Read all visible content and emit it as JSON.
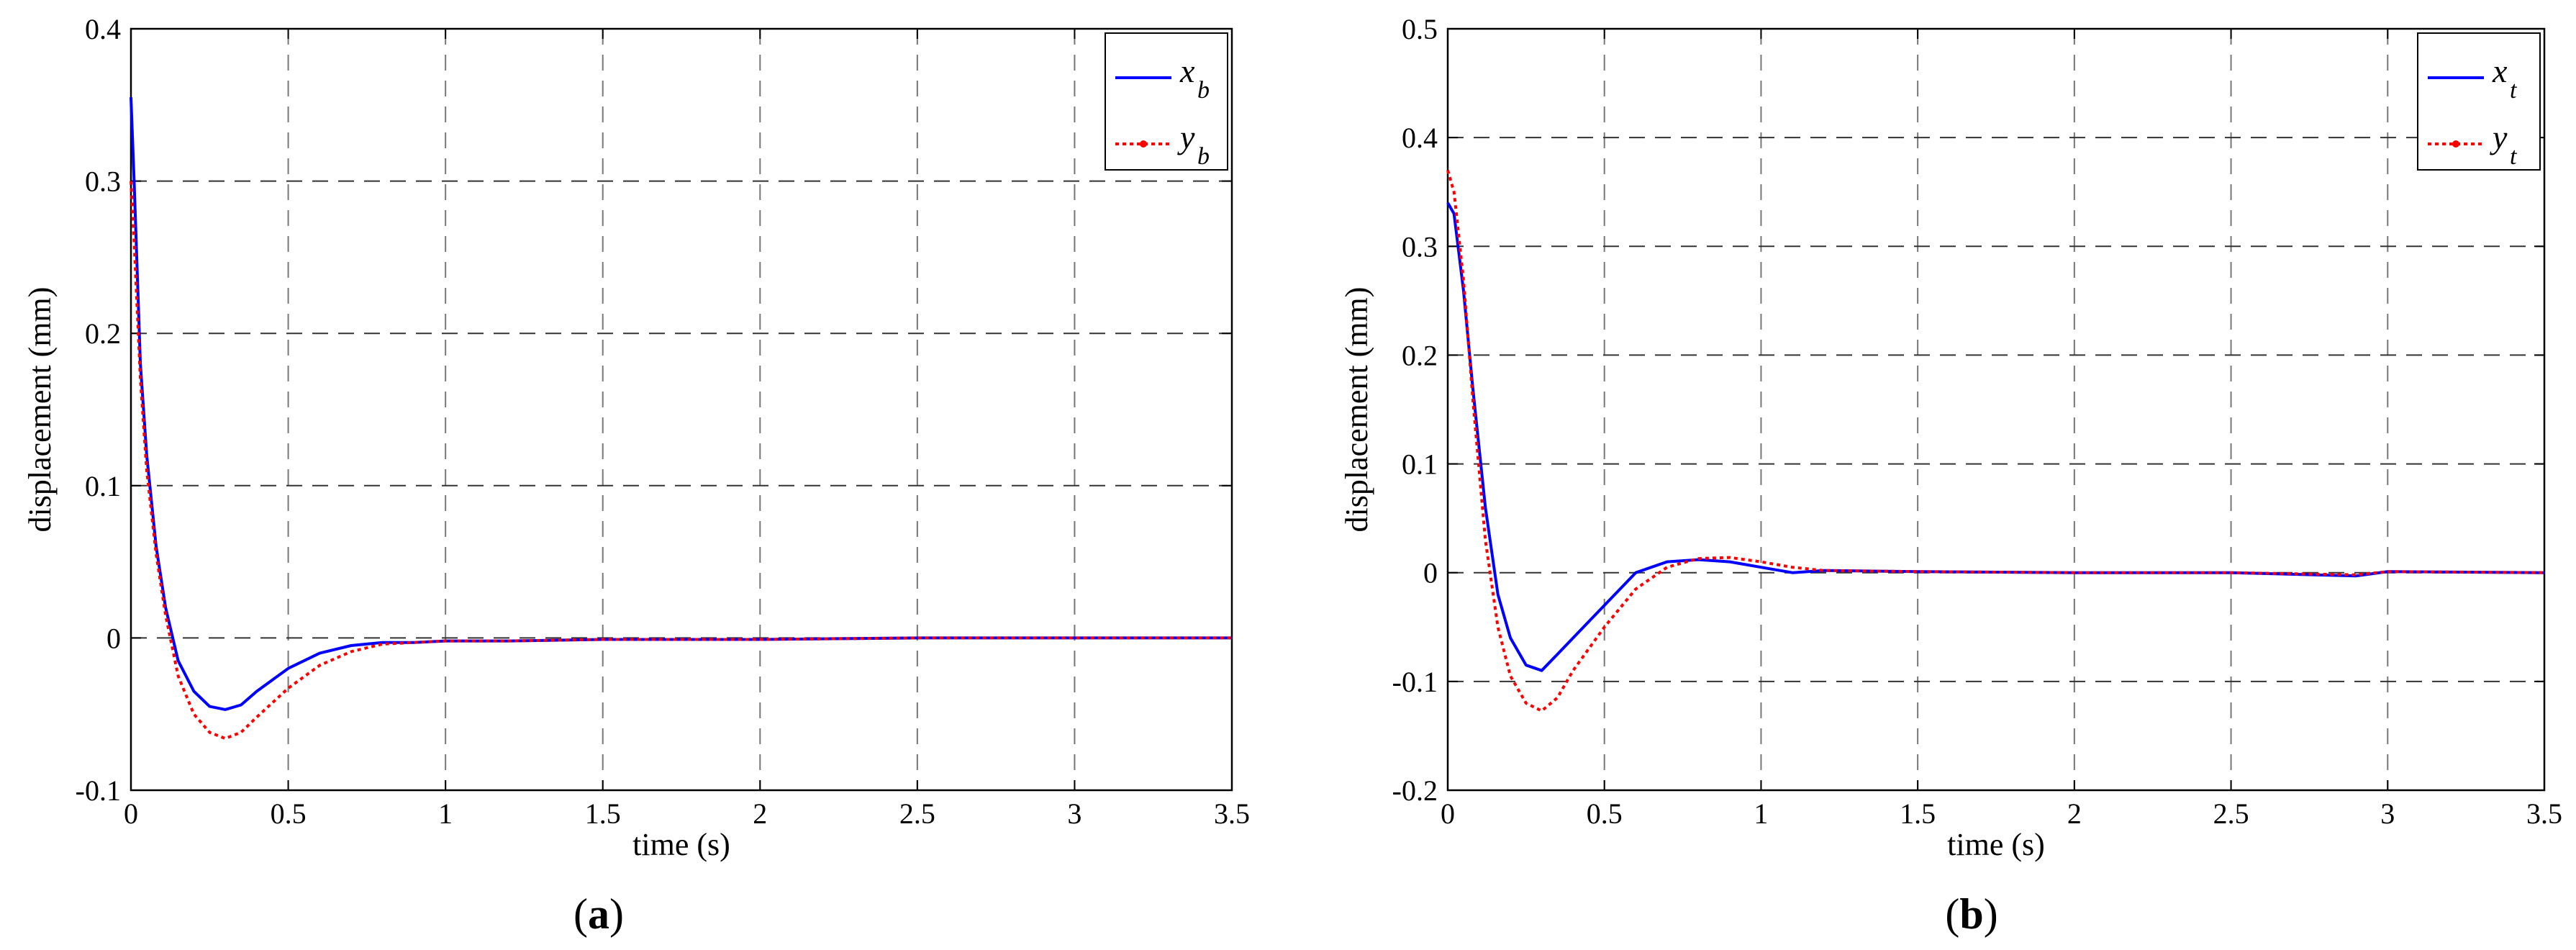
{
  "chart_data": [
    {
      "type": "line",
      "caption": "(a)",
      "caption_letter": "a",
      "xlabel": "time (s)",
      "ylabel": "displacement (mm)",
      "xlim": [
        0,
        3.5
      ],
      "ylim": [
        -0.1,
        0.4
      ],
      "xticks": [
        0,
        0.5,
        1,
        1.5,
        2,
        2.5,
        3,
        3.5
      ],
      "xtick_labels": [
        "0",
        "0.5",
        "1",
        "1.5",
        "2",
        "2.5",
        "3",
        "3.5"
      ],
      "yticks": [
        -0.1,
        0,
        0.1,
        0.2,
        0.3,
        0.4
      ],
      "ytick_labels": [
        "-0.1",
        "0",
        "0.1",
        "0.2",
        "0.3",
        "0.4"
      ],
      "grid": true,
      "legend_position": "top-right",
      "series": [
        {
          "name": "x",
          "subscript": "b",
          "color": "#0000ff",
          "style": "solid",
          "x": [
            0,
            0.01,
            0.03,
            0.05,
            0.08,
            0.11,
            0.15,
            0.2,
            0.25,
            0.3,
            0.35,
            0.4,
            0.5,
            0.6,
            0.7,
            0.8,
            0.9,
            1.0,
            1.2,
            1.5,
            2.0,
            2.5,
            3.0,
            3.5
          ],
          "y": [
            0.355,
            0.3,
            0.18,
            0.12,
            0.06,
            0.02,
            -0.015,
            -0.035,
            -0.045,
            -0.047,
            -0.044,
            -0.035,
            -0.02,
            -0.01,
            -0.005,
            -0.003,
            -0.003,
            -0.002,
            -0.002,
            -0.001,
            -0.001,
            0.0,
            0.0,
            0.0
          ]
        },
        {
          "name": "y",
          "subscript": "b",
          "color": "#ff0000",
          "style": "dotted",
          "x": [
            0,
            0.01,
            0.03,
            0.05,
            0.08,
            0.11,
            0.15,
            0.2,
            0.25,
            0.3,
            0.35,
            0.4,
            0.5,
            0.6,
            0.7,
            0.8,
            0.9,
            1.0,
            1.2,
            1.5,
            2.0,
            2.5,
            3.0,
            3.5
          ],
          "y": [
            0.3,
            0.26,
            0.17,
            0.11,
            0.055,
            0.015,
            -0.025,
            -0.05,
            -0.062,
            -0.066,
            -0.062,
            -0.052,
            -0.033,
            -0.018,
            -0.009,
            -0.004,
            -0.003,
            -0.002,
            -0.002,
            -0.001,
            -0.001,
            0.0,
            0.0,
            0.0
          ]
        }
      ]
    },
    {
      "type": "line",
      "caption": "(b)",
      "caption_letter": "b",
      "xlabel": "time (s)",
      "ylabel": "displacement (mm)",
      "xlim": [
        0,
        3.5
      ],
      "ylim": [
        -0.2,
        0.5
      ],
      "xticks": [
        0,
        0.5,
        1,
        1.5,
        2,
        2.5,
        3,
        3.5
      ],
      "xtick_labels": [
        "0",
        "0.5",
        "1",
        "1.5",
        "2",
        "2.5",
        "3",
        "3.5"
      ],
      "yticks": [
        -0.2,
        -0.1,
        0,
        0.1,
        0.2,
        0.3,
        0.4,
        0.5
      ],
      "ytick_labels": [
        "-0.2",
        "-0.1",
        "0",
        "0.1",
        "0.2",
        "0.3",
        "0.4",
        "0.5"
      ],
      "grid": true,
      "legend_position": "top-right",
      "series": [
        {
          "name": "x",
          "subscript": "t",
          "color": "#0000ff",
          "style": "solid",
          "x": [
            0,
            0.02,
            0.05,
            0.08,
            0.12,
            0.16,
            0.2,
            0.25,
            0.3,
            0.35,
            0.4,
            0.5,
            0.6,
            0.7,
            0.8,
            0.9,
            1.0,
            1.1,
            1.2,
            1.5,
            2.0,
            2.5,
            2.9,
            3.0,
            3.5
          ],
          "y": [
            0.34,
            0.33,
            0.26,
            0.17,
            0.06,
            -0.02,
            -0.06,
            -0.085,
            -0.09,
            -0.075,
            -0.06,
            -0.03,
            0.0,
            0.01,
            0.012,
            0.01,
            0.005,
            0.0,
            0.002,
            0.001,
            0.0,
            0.0,
            -0.003,
            0.001,
            0.0
          ]
        },
        {
          "name": "y",
          "subscript": "t",
          "color": "#ff0000",
          "style": "dotted",
          "x": [
            0,
            0.02,
            0.05,
            0.08,
            0.12,
            0.16,
            0.2,
            0.25,
            0.3,
            0.35,
            0.4,
            0.5,
            0.6,
            0.7,
            0.8,
            0.9,
            1.0,
            1.1,
            1.2,
            1.5,
            2.0,
            2.5,
            2.9,
            3.0,
            3.5
          ],
          "y": [
            0.37,
            0.35,
            0.27,
            0.16,
            0.03,
            -0.05,
            -0.095,
            -0.12,
            -0.127,
            -0.115,
            -0.09,
            -0.05,
            -0.015,
            0.005,
            0.013,
            0.014,
            0.01,
            0.005,
            0.002,
            0.001,
            0.0,
            0.0,
            -0.002,
            0.001,
            0.0
          ]
        }
      ]
    }
  ]
}
